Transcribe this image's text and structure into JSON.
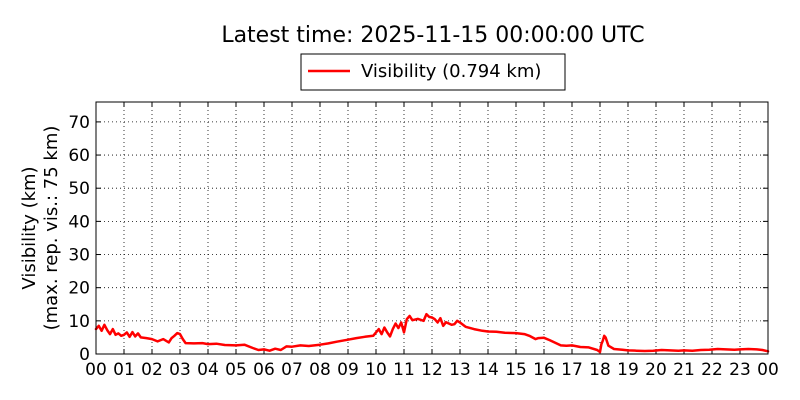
{
  "chart_data": {
    "type": "line",
    "title": "Latest time: 2025-11-15 00:00:00 UTC",
    "ylabel_line1": "Visibility (km)",
    "ylabel_line2": "(max. rep. vis.: 75 km)",
    "xlabel": "",
    "ylim": [
      0,
      76
    ],
    "xlim": [
      0,
      24
    ],
    "yticks": [
      0,
      10,
      20,
      30,
      40,
      50,
      60,
      70
    ],
    "xtick_labels": [
      "00",
      "01",
      "02",
      "03",
      "04",
      "05",
      "06",
      "07",
      "08",
      "09",
      "10",
      "11",
      "12",
      "13",
      "14",
      "15",
      "16",
      "17",
      "18",
      "19",
      "20",
      "21",
      "22",
      "23",
      "00"
    ],
    "grid": true,
    "legend_position": "top-center",
    "series": [
      {
        "name": "Visibility (0.794 km)",
        "color": "#ff0000",
        "x": [
          0.0,
          0.1,
          0.2,
          0.3,
          0.4,
          0.5,
          0.6,
          0.7,
          0.8,
          0.9,
          1.0,
          1.1,
          1.2,
          1.3,
          1.4,
          1.5,
          1.6,
          1.8,
          2.0,
          2.2,
          2.4,
          2.6,
          2.7,
          2.8,
          2.9,
          3.0,
          3.1,
          3.2,
          3.5,
          3.8,
          4.0,
          4.3,
          4.6,
          5.0,
          5.3,
          5.6,
          5.8,
          6.0,
          6.2,
          6.4,
          6.6,
          6.8,
          7.0,
          7.3,
          7.6,
          8.0,
          8.3,
          8.6,
          9.0,
          9.3,
          9.6,
          9.9,
          10.0,
          10.1,
          10.2,
          10.3,
          10.4,
          10.5,
          10.6,
          10.7,
          10.8,
          10.9,
          11.0,
          11.1,
          11.2,
          11.3,
          11.5,
          11.7,
          11.8,
          11.9,
          12.0,
          12.1,
          12.2,
          12.3,
          12.4,
          12.5,
          12.6,
          12.7,
          12.8,
          12.9,
          13.0,
          13.2,
          13.5,
          13.8,
          14.0,
          14.3,
          14.6,
          15.0,
          15.3,
          15.5,
          15.7,
          15.8,
          16.0,
          16.2,
          16.4,
          16.6,
          16.8,
          17.0,
          17.3,
          17.6,
          17.9,
          18.0,
          18.05,
          18.1,
          18.15,
          18.2,
          18.3,
          18.5,
          18.8,
          19.0,
          19.3,
          19.6,
          19.9,
          20.2,
          20.5,
          20.8,
          21.0,
          21.3,
          21.6,
          21.9,
          22.2,
          22.5,
          22.8,
          23.0,
          23.3,
          23.6,
          23.8,
          24.0
        ],
        "y": [
          7.5,
          8.5,
          7.0,
          8.8,
          7.2,
          6.0,
          7.5,
          5.8,
          6.2,
          5.5,
          5.8,
          6.5,
          5.2,
          6.6,
          5.3,
          6.2,
          5.0,
          4.8,
          4.5,
          3.8,
          4.5,
          3.5,
          4.8,
          5.5,
          6.3,
          6.0,
          4.5,
          3.3,
          3.2,
          3.3,
          3.0,
          3.1,
          2.7,
          2.6,
          2.8,
          1.8,
          1.2,
          1.4,
          1.0,
          1.6,
          1.2,
          2.3,
          2.2,
          2.6,
          2.4,
          2.8,
          3.2,
          3.7,
          4.3,
          4.8,
          5.2,
          5.5,
          6.5,
          7.5,
          6.0,
          8.0,
          6.5,
          5.3,
          7.5,
          9.2,
          7.8,
          9.5,
          6.5,
          10.5,
          11.5,
          10.2,
          10.6,
          10.0,
          12.0,
          11.2,
          11.0,
          10.5,
          9.5,
          10.8,
          8.5,
          9.6,
          9.2,
          8.8,
          9.0,
          10.0,
          9.5,
          8.2,
          7.5,
          7.0,
          6.8,
          6.7,
          6.4,
          6.3,
          6.0,
          5.4,
          4.5,
          4.8,
          4.9,
          4.2,
          3.4,
          2.6,
          2.5,
          2.6,
          2.1,
          2.0,
          1.2,
          0.6,
          3.0,
          4.0,
          5.5,
          5.0,
          2.5,
          1.5,
          1.3,
          1.1,
          1.0,
          0.9,
          1.0,
          1.2,
          1.1,
          1.0,
          1.1,
          1.0,
          1.2,
          1.3,
          1.5,
          1.4,
          1.3,
          1.4,
          1.5,
          1.4,
          1.2,
          0.8
        ]
      }
    ]
  }
}
